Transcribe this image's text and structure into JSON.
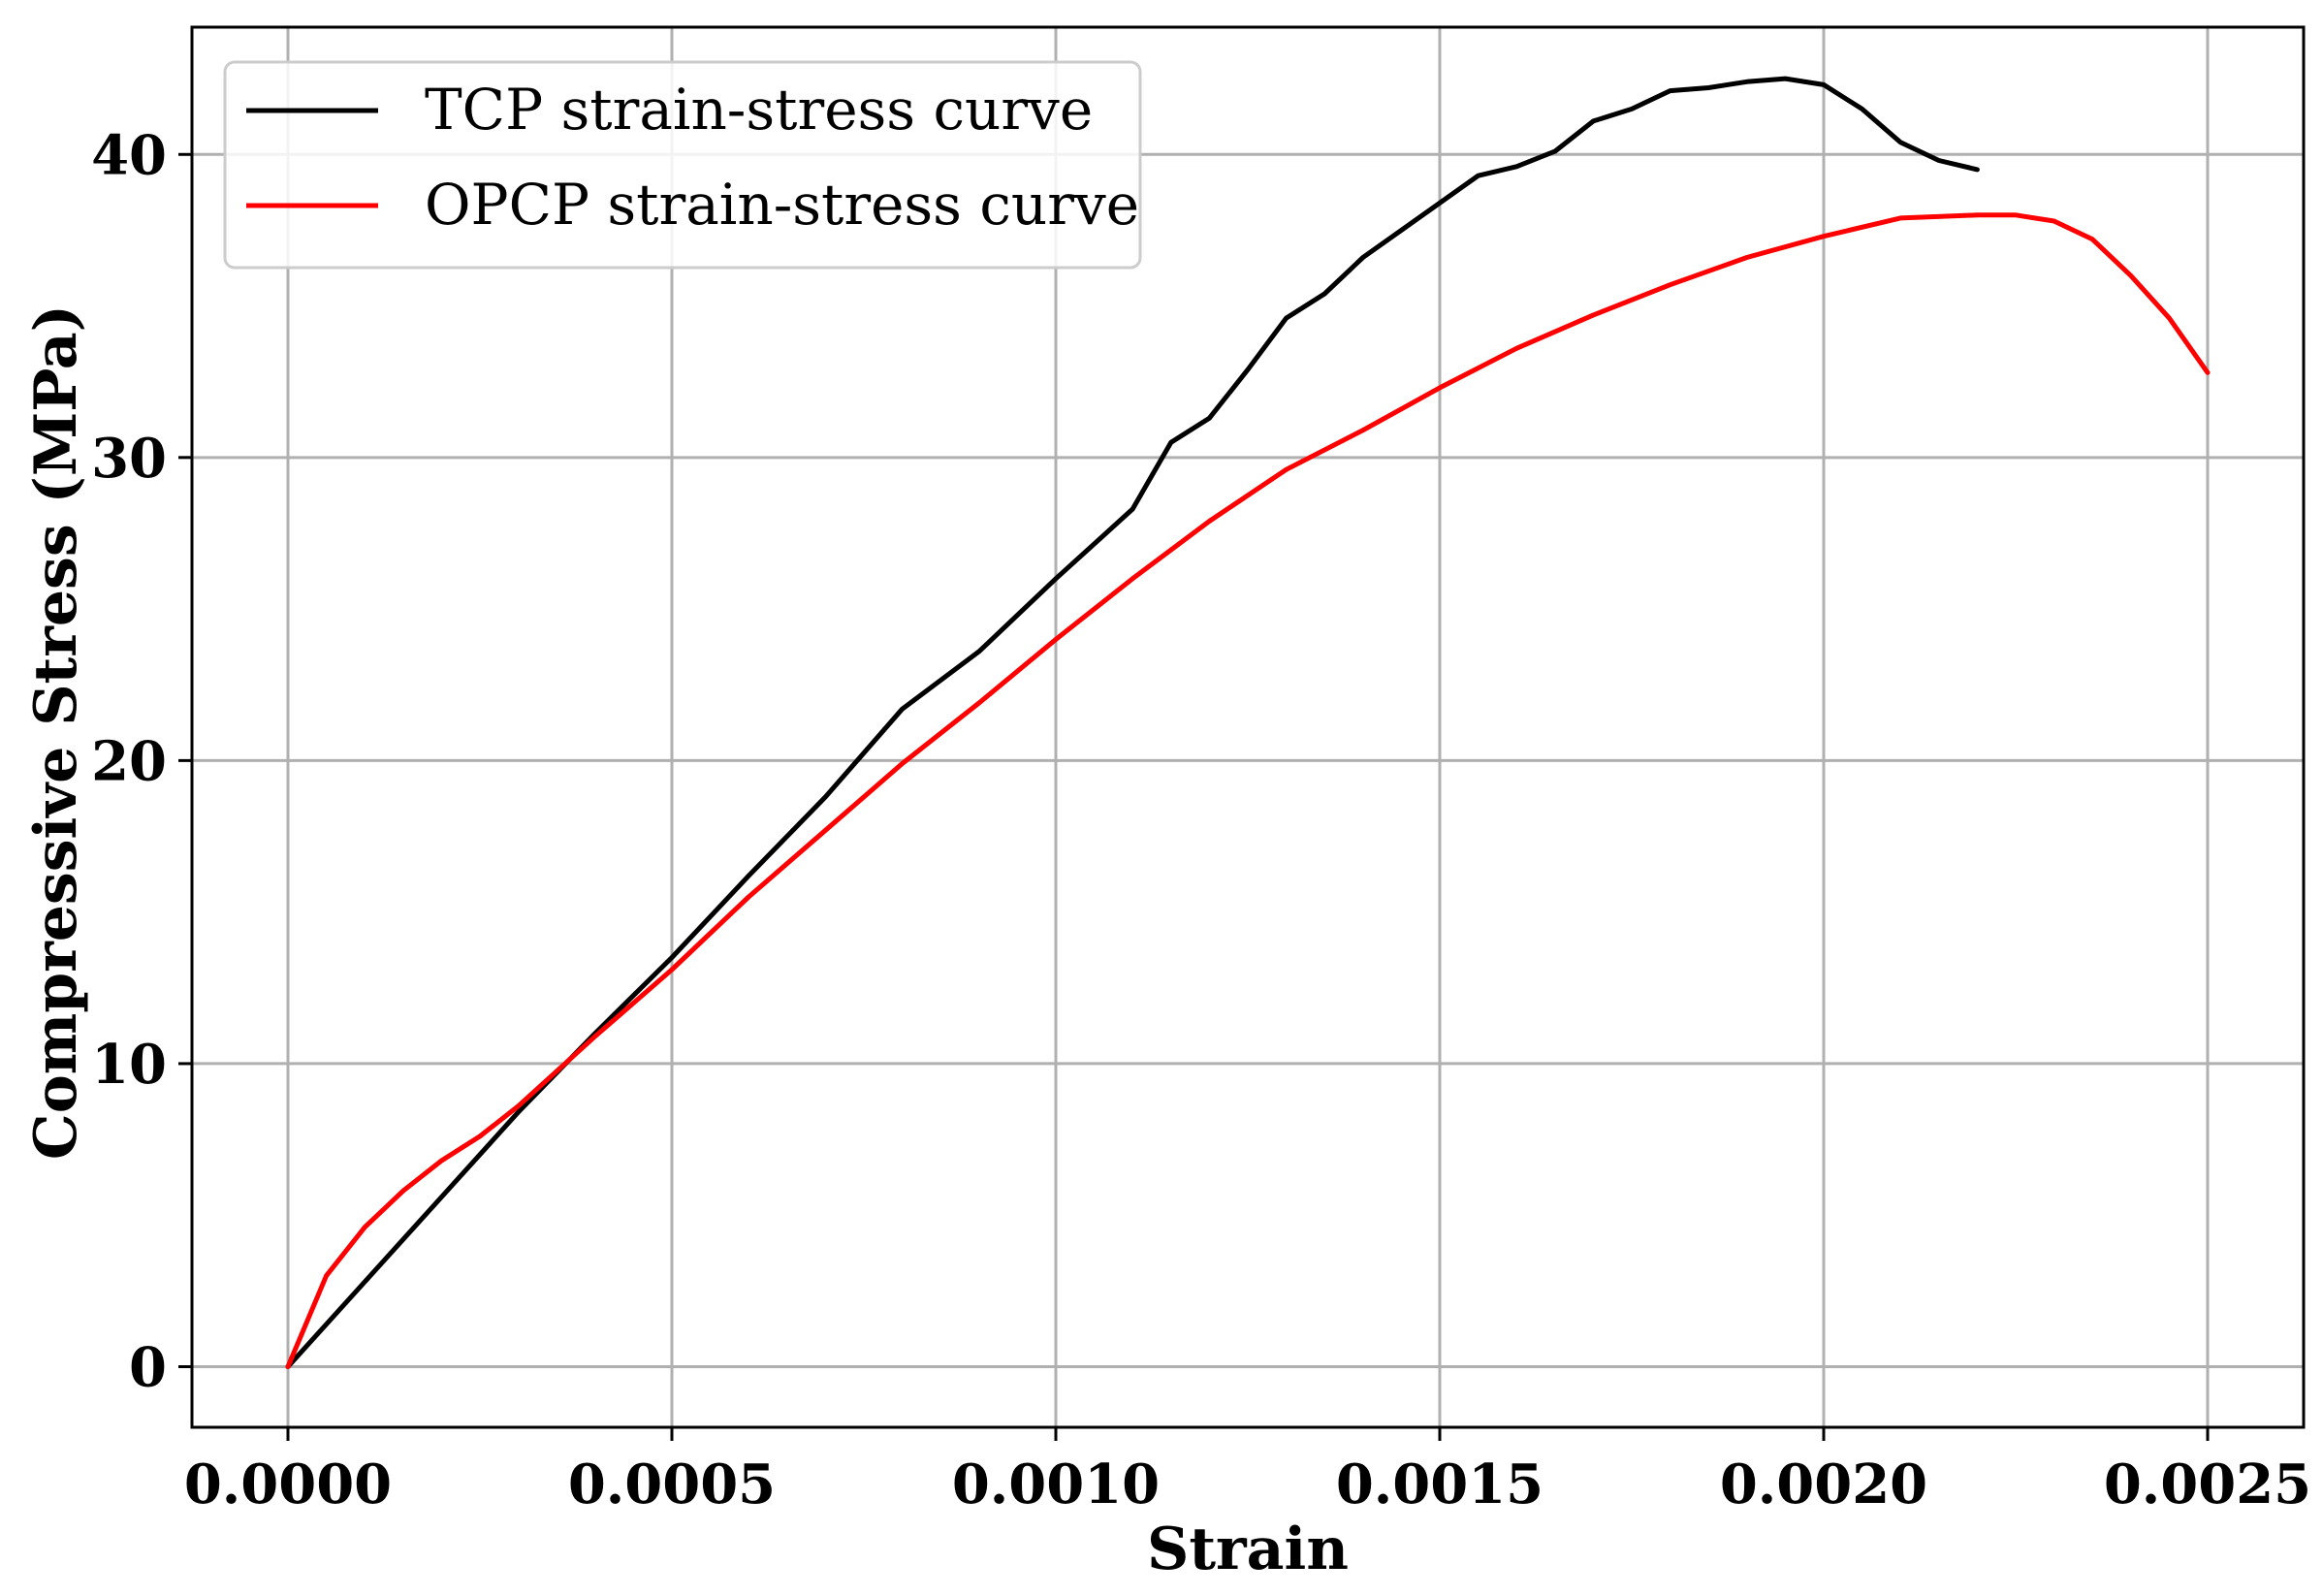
{
  "chart_data": {
    "type": "line",
    "xlabel": "Strain",
    "ylabel": "Compressive Stress (MPa)",
    "xlim": [
      -0.000125,
      0.002625
    ],
    "ylim": [
      -2,
      44.2
    ],
    "xticks": [
      0.0,
      0.0005,
      0.001,
      0.0015,
      0.002,
      0.0025
    ],
    "xtick_labels": [
      "0.0000",
      "0.0005",
      "0.0010",
      "0.0015",
      "0.0020",
      "0.0025"
    ],
    "yticks": [
      0,
      10,
      20,
      30,
      40
    ],
    "ytick_labels": [
      "0",
      "10",
      "20",
      "30",
      "40"
    ],
    "grid": true,
    "legend_position": "upper-left",
    "series": [
      {
        "name": "TCP strain-stress curve",
        "color": "#000000",
        "x": [
          0.0,
          0.0001,
          0.0002,
          0.0003,
          0.0004,
          0.0005,
          0.0006,
          0.0007,
          0.0008,
          0.0009,
          0.001,
          0.0011,
          0.00115,
          0.0012,
          0.00125,
          0.0013,
          0.00135,
          0.0014,
          0.00145,
          0.0015,
          0.00155,
          0.0016,
          0.00165,
          0.0017,
          0.00175,
          0.0018,
          0.00185,
          0.0019,
          0.00195,
          0.002,
          0.00205,
          0.0021,
          0.00215,
          0.0022
        ],
        "y": [
          0.0,
          2.8,
          5.6,
          8.4,
          11.0,
          13.5,
          16.2,
          18.8,
          21.7,
          23.6,
          26.0,
          28.3,
          30.5,
          31.3,
          32.9,
          34.6,
          35.4,
          36.6,
          37.5,
          38.4,
          39.3,
          39.6,
          40.1,
          41.1,
          41.5,
          42.1,
          42.2,
          42.4,
          42.5,
          42.3,
          41.5,
          40.4,
          39.8,
          39.5
        ]
      },
      {
        "name": "OPCP strain-stress curve",
        "color": "#ff0000",
        "x": [
          0.0,
          5e-05,
          0.0001,
          0.00015,
          0.0002,
          0.00025,
          0.0003,
          0.0004,
          0.0005,
          0.0006,
          0.0007,
          0.0008,
          0.0009,
          0.001,
          0.0011,
          0.0012,
          0.0013,
          0.0014,
          0.0015,
          0.0016,
          0.0017,
          0.0018,
          0.0019,
          0.002,
          0.0021,
          0.0022,
          0.00225,
          0.0023,
          0.00235,
          0.0024,
          0.00245,
          0.0025
        ],
        "y": [
          0.0,
          3.0,
          4.6,
          5.8,
          6.8,
          7.6,
          8.6,
          10.9,
          13.1,
          15.5,
          17.7,
          19.9,
          21.9,
          24.0,
          26.0,
          27.9,
          29.6,
          30.9,
          32.3,
          33.6,
          34.7,
          35.7,
          36.6,
          37.3,
          37.9,
          38.0,
          38.0,
          37.8,
          37.2,
          36.0,
          34.6,
          32.8
        ]
      }
    ]
  }
}
